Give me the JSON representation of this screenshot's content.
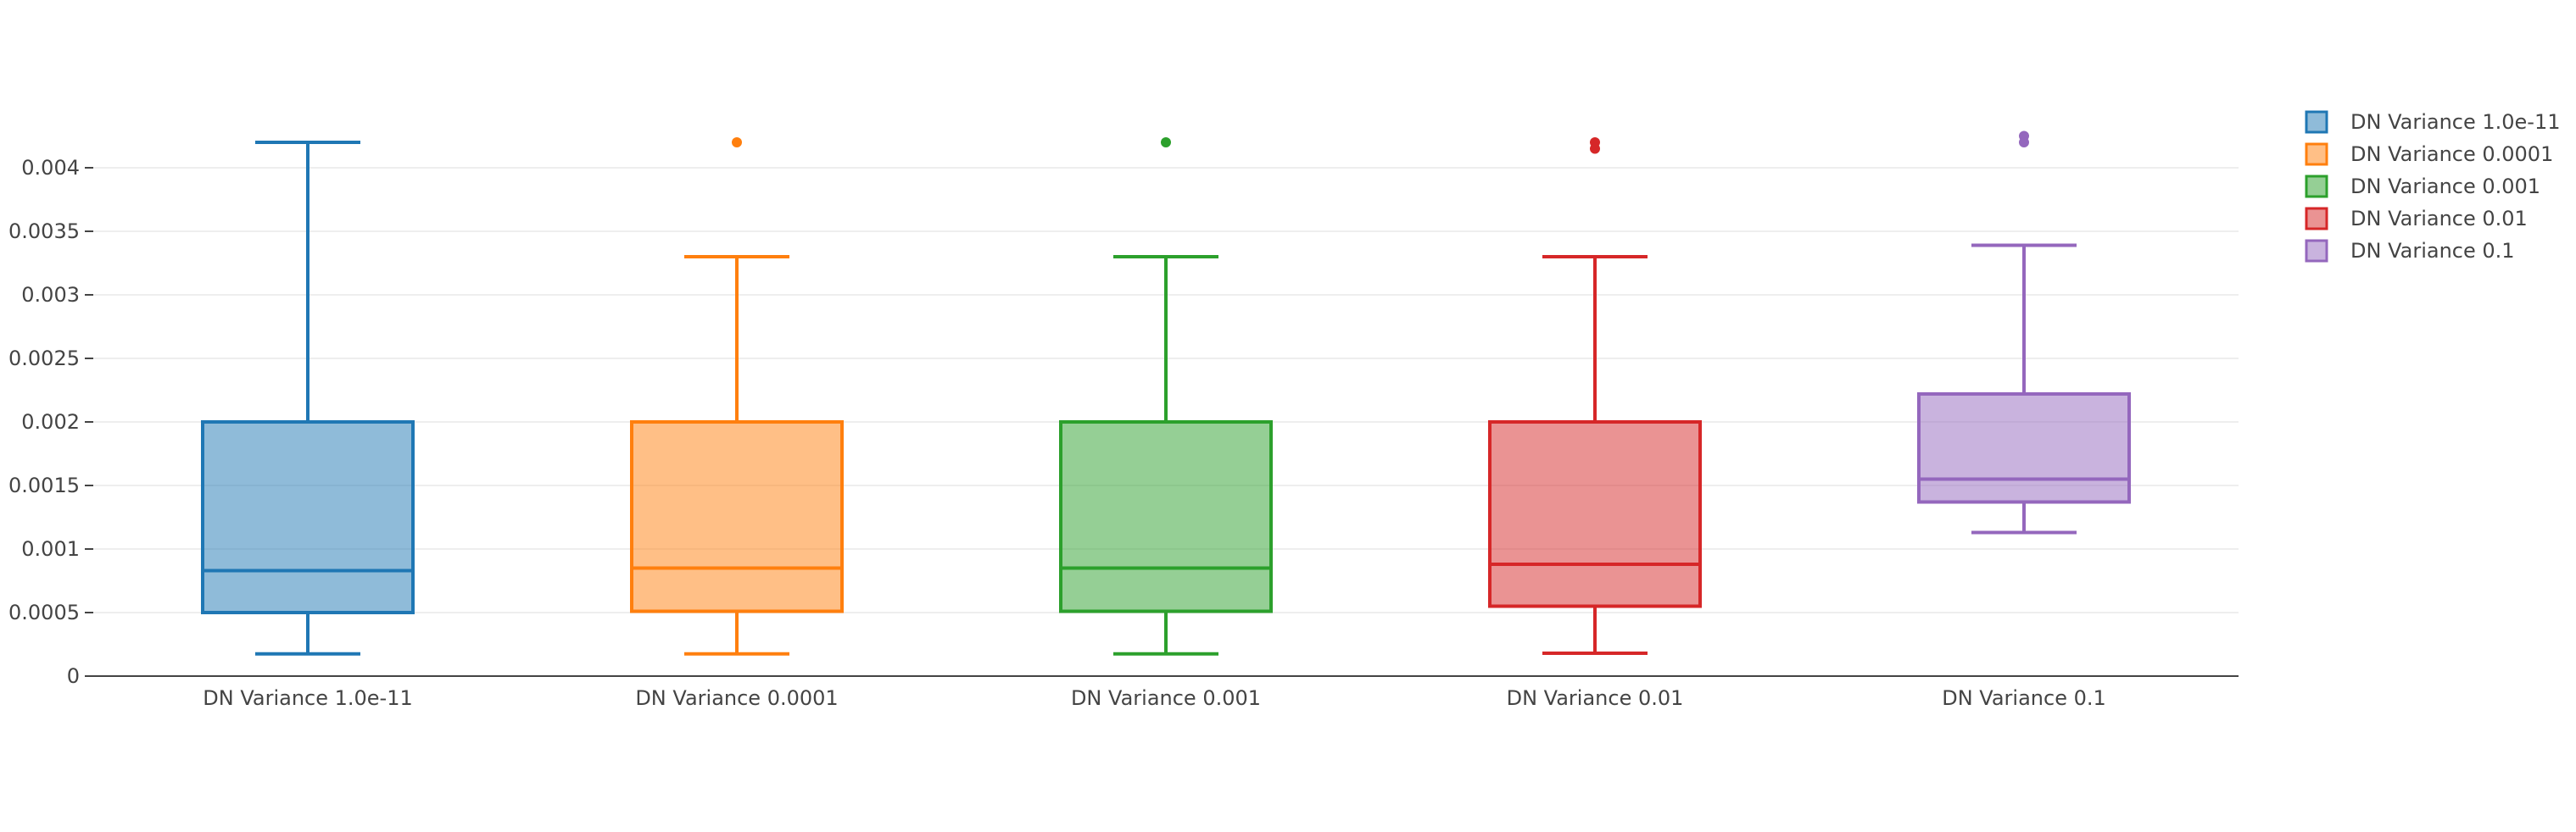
{
  "chart_data": {
    "type": "box",
    "title": "",
    "xlabel": "",
    "ylabel": "",
    "ylim": [
      0,
      0.00452
    ],
    "grid": true,
    "legend_position": "top-right",
    "yticks": [
      0,
      0.0005,
      0.001,
      0.0015,
      0.002,
      0.0025,
      0.003,
      0.0035,
      0.004
    ],
    "ytick_labels": [
      "0",
      "0.0005",
      "0.001",
      "0.0015",
      "0.002",
      "0.0025",
      "0.003",
      "0.0035",
      "0.004"
    ],
    "series": [
      {
        "name": "DN Variance 1.0e-11",
        "category": "DN Variance 1.0e-11",
        "color": "#1f77b4",
        "fill": "rgba(31,119,180,0.5)",
        "whisker_low": 0.000175,
        "q1": 0.0005,
        "median": 0.00083,
        "q3": 0.002,
        "whisker_high": 0.0042,
        "outliers": []
      },
      {
        "name": "DN Variance 0.0001",
        "category": "DN Variance 0.0001",
        "color": "#ff7f0e",
        "fill": "rgba(255,127,14,0.5)",
        "whisker_low": 0.000175,
        "q1": 0.00051,
        "median": 0.00085,
        "q3": 0.002,
        "whisker_high": 0.0033,
        "outliers": [
          0.0042
        ]
      },
      {
        "name": "DN Variance 0.001",
        "category": "DN Variance 0.001",
        "color": "#2ca02c",
        "fill": "rgba(44,160,44,0.5)",
        "whisker_low": 0.000175,
        "q1": 0.00051,
        "median": 0.00085,
        "q3": 0.002,
        "whisker_high": 0.0033,
        "outliers": [
          0.0042
        ]
      },
      {
        "name": "DN Variance 0.01",
        "category": "DN Variance 0.01",
        "color": "#d62728",
        "fill": "rgba(214,39,40,0.5)",
        "whisker_low": 0.00018,
        "q1": 0.00055,
        "median": 0.00088,
        "q3": 0.002,
        "whisker_high": 0.0033,
        "outliers": [
          0.0042,
          0.00415
        ]
      },
      {
        "name": "DN Variance 0.1",
        "category": "DN Variance 0.1",
        "color": "#9467bd",
        "fill": "rgba(148,103,189,0.5)",
        "whisker_low": 0.00113,
        "q1": 0.00137,
        "median": 0.00155,
        "q3": 0.00222,
        "whisker_high": 0.00339,
        "outliers": [
          0.00425,
          0.0042
        ]
      }
    ]
  }
}
